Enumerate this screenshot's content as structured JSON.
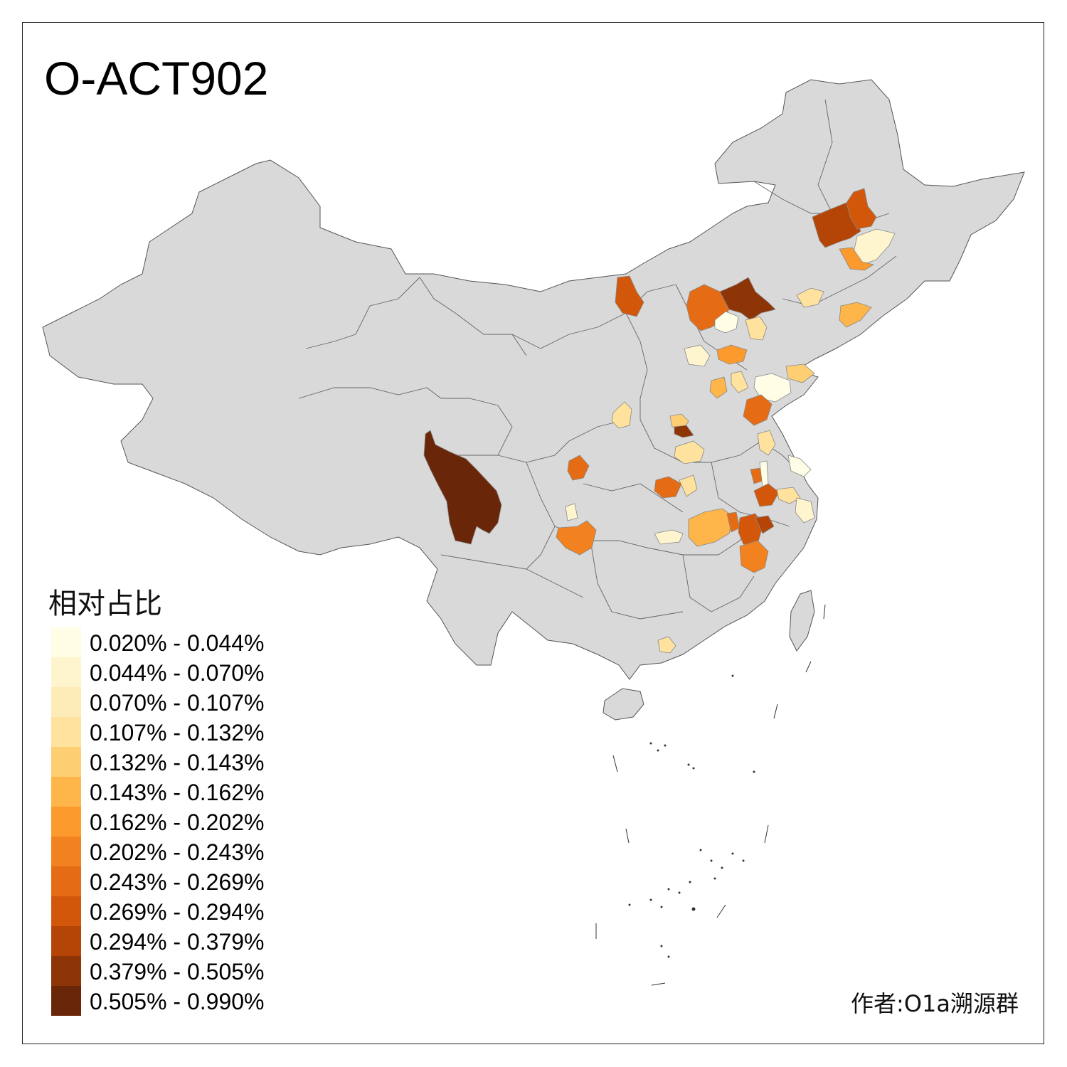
{
  "title": "O-ACT902",
  "legend": {
    "title": "相对占比",
    "items": [
      {
        "label": "0.020% - 0.044%",
        "color": "#FFFDE5"
      },
      {
        "label": "0.044% - 0.070%",
        "color": "#FEF5CF"
      },
      {
        "label": "0.070% - 0.107%",
        "color": "#FEECB8"
      },
      {
        "label": "0.107% - 0.132%",
        "color": "#FEE29D"
      },
      {
        "label": "0.132% - 0.143%",
        "color": "#FECF72"
      },
      {
        "label": "0.143% - 0.162%",
        "color": "#FEB54A"
      },
      {
        "label": "0.162% - 0.202%",
        "color": "#FC9A2E"
      },
      {
        "label": "0.202% - 0.243%",
        "color": "#F2811F"
      },
      {
        "label": "0.243% - 0.269%",
        "color": "#E56C14"
      },
      {
        "label": "0.269% - 0.294%",
        "color": "#D2570A"
      },
      {
        "label": "0.294% - 0.379%",
        "color": "#B44506"
      },
      {
        "label": "0.379% - 0.505%",
        "color": "#8E3508"
      },
      {
        "label": "0.505% - 0.990%",
        "color": "#6A2609"
      }
    ]
  },
  "author": "作者:O1a溯源群",
  "base_color": "#D9D9D9"
}
